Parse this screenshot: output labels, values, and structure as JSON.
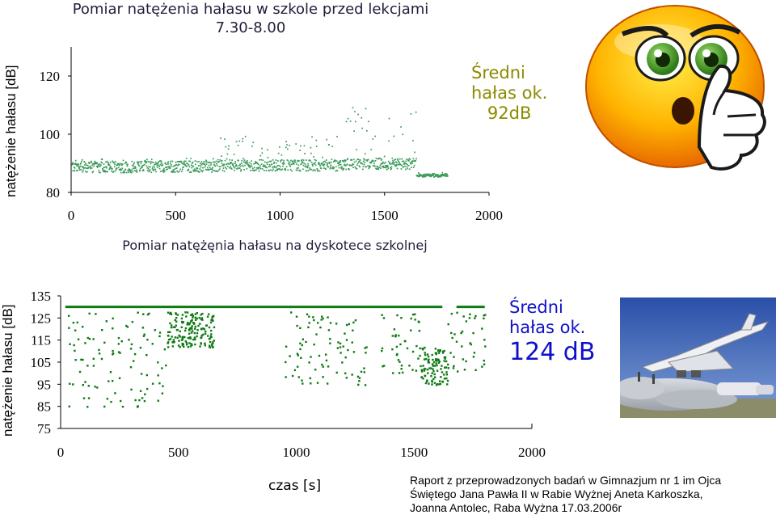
{
  "top": {
    "title_line1": "Pomiar natężenia hałasu w szkole przed lekcjami",
    "title_line2": "7.30-8.00",
    "avg_line1": "Średni",
    "avg_line2": "hałas ok.",
    "avg_line3": "92dB"
  },
  "bottom": {
    "title": "Pomiar natężęnia hałasu na dyskotece szkolnej",
    "avg_line1": "Średni",
    "avg_line2": "hałas ok.",
    "avg_line3": "124 dB"
  },
  "report": {
    "line1": "Raport z przeprowadzonych badań w Gimnazjum nr 1 im Ojca",
    "line2": "Świętego Jana Pawła II w Rabie Wyżnej Aneta Karkoszka,",
    "line3": "Joanna Antolec, Raba Wyżna 17.03.2006r"
  },
  "images": {
    "smiley": "thinking-smiley-icon",
    "plane": "concorde-takeoff-photo"
  },
  "chart_data": [
    {
      "type": "scatter",
      "title": "Pomiar natężenia hałasu w szkole przed lekcjami 7.30-8.00",
      "xlabel": "",
      "ylabel": "natężenie hałasu [dB]",
      "xlim": [
        0,
        2000
      ],
      "ylim": [
        80,
        130
      ],
      "x_ticks": [
        "0",
        "500",
        "1000",
        "1500",
        "2000"
      ],
      "y_ticks": [
        "80",
        "100",
        "120"
      ],
      "grid": false,
      "color": "#3a9a5a",
      "segments": [
        {
          "x_start": 0,
          "x_end": 700,
          "baseline": 89,
          "spread_low": 2,
          "spread_high": 3
        },
        {
          "x_start": 700,
          "x_end": 1300,
          "baseline": 89.5,
          "spread_low": 2,
          "spread_high": 10
        },
        {
          "x_start": 1300,
          "x_end": 1650,
          "baseline": 90,
          "spread_low": 2,
          "spread_high": 20
        },
        {
          "x_start": 1650,
          "x_end": 1800,
          "baseline": 86,
          "spread_low": 0.5,
          "spread_high": 1
        }
      ]
    },
    {
      "type": "scatter",
      "title": "Pomiar natężęnia hałasu na dyskotece szkolnej",
      "xlabel": "czas [s]",
      "ylabel": "natężenie hałasu [dB]",
      "xlim": [
        0,
        2000
      ],
      "ylim": [
        75,
        135
      ],
      "x_ticks": [
        "0",
        "500",
        "1000",
        "1500",
        "2000"
      ],
      "y_ticks": [
        "135",
        "125",
        "115",
        "105",
        "95",
        "85",
        "75"
      ],
      "grid": false,
      "color": "#0d7a12",
      "saturation_level": 130,
      "saturation_ranges": [
        [
          20,
          1620
        ],
        [
          1680,
          1800
        ]
      ],
      "scatter_bursts": [
        {
          "x_start": 30,
          "x_end": 450,
          "y_min": 85,
          "y_max": 128
        },
        {
          "x_start": 450,
          "x_end": 650,
          "y_min": 112,
          "y_max": 128
        },
        {
          "x_start": 950,
          "x_end": 1300,
          "y_min": 95,
          "y_max": 128
        },
        {
          "x_start": 1350,
          "x_end": 1520,
          "y_min": 100,
          "y_max": 128
        },
        {
          "x_start": 1520,
          "x_end": 1640,
          "y_min": 95,
          "y_max": 112
        },
        {
          "x_start": 1640,
          "x_end": 1800,
          "y_min": 100,
          "y_max": 128
        }
      ]
    }
  ]
}
